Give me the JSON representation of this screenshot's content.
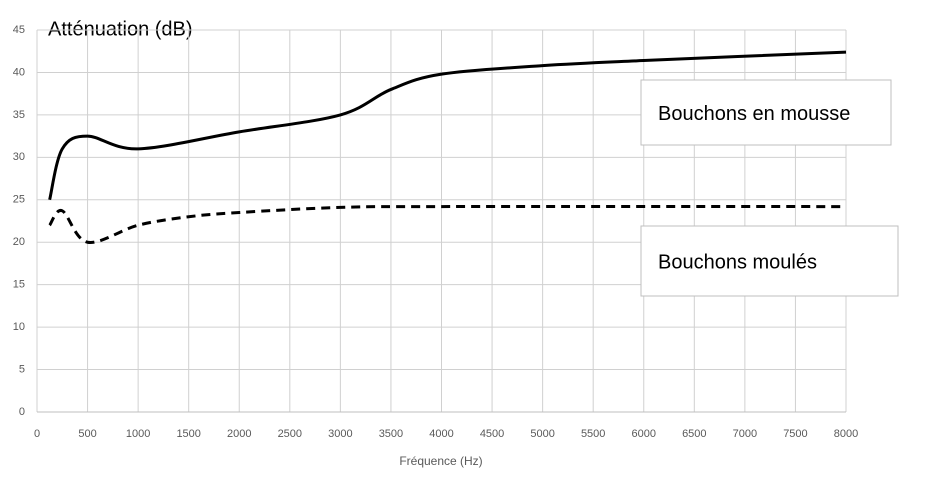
{
  "chart_data": {
    "type": "line",
    "title": "Atténuation (dB)",
    "x_label": "Fréquence (Hz)",
    "xlim": [
      0,
      8000
    ],
    "xticks": [
      0,
      500,
      1000,
      1500,
      2000,
      2500,
      3000,
      3500,
      4000,
      4500,
      5000,
      5500,
      6000,
      6500,
      7000,
      7500,
      8000
    ],
    "ylim": [
      0,
      45
    ],
    "yticks": [
      0,
      5,
      10,
      15,
      20,
      25,
      30,
      35,
      40,
      45
    ],
    "grid": true,
    "series": [
      {
        "name": "Bouchons en mousse",
        "color": "#000000",
        "line_style": "solid",
        "x": [
          125,
          250,
          500,
          1000,
          2000,
          3000,
          3500,
          4000,
          5000,
          6000,
          8000
        ],
        "values": [
          25,
          31,
          32.5,
          31,
          33,
          35,
          38,
          39.8,
          40.8,
          41.4,
          42.4
        ]
      },
      {
        "name": "Bouchons moulés",
        "color": "#000000",
        "line_style": "dashed",
        "x": [
          125,
          250,
          500,
          1000,
          1500,
          2000,
          3000,
          4000,
          8000
        ],
        "values": [
          22,
          23.7,
          20,
          22,
          23,
          23.5,
          24.1,
          24.2,
          24.2
        ]
      }
    ]
  }
}
